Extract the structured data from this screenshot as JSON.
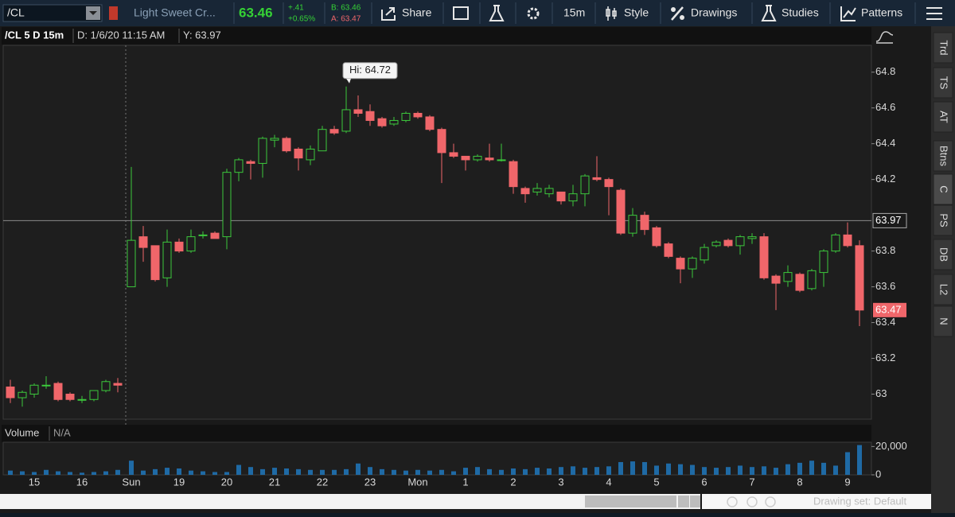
{
  "toolbar": {
    "symbol": "/CL",
    "description": "Light Sweet Cr...",
    "last": "63.46",
    "change": "+.41",
    "change_pct": "+0.65%",
    "bid": "B: 63.46",
    "ask": "A: 63.47",
    "buttons": [
      "Share",
      "15m",
      "Style",
      "Drawings",
      "Studies",
      "Patterns"
    ]
  },
  "header": {
    "title": "/CL 5 D 15m",
    "date": "D: 1/6/20 11:15 AM",
    "y": "Y: 63.97"
  },
  "chart_data": {
    "type": "candlestick",
    "categories": [
      null,
      null,
      "15",
      null,
      null,
      null,
      "16",
      null,
      null,
      null,
      "Sun",
      null,
      null,
      null,
      "19",
      null,
      null,
      null,
      "20",
      null,
      null,
      null,
      "21",
      null,
      null,
      null,
      "22",
      null,
      null,
      null,
      "23",
      null,
      null,
      null,
      "Mon",
      null,
      null,
      null,
      "1",
      null,
      null,
      null,
      "2",
      null,
      null,
      null,
      "3",
      null,
      null,
      null,
      "4",
      null,
      null,
      null,
      "5",
      null,
      null,
      null,
      "6",
      null,
      null,
      null,
      "7",
      null,
      null,
      null,
      "8",
      null,
      null,
      null,
      "9",
      null
    ],
    "open": [
      63.04,
      62.98,
      63.0,
      63.05,
      63.06,
      63.0,
      62.97,
      62.97,
      63.02,
      63.06,
      63.6,
      63.88,
      63.83,
      63.65,
      63.85,
      63.8,
      63.89,
      63.9,
      63.88,
      64.24,
      64.3,
      64.29,
      64.42,
      64.43,
      64.37,
      64.31,
      64.36,
      64.48,
      64.47,
      64.59,
      64.58,
      64.54,
      64.51,
      64.53,
      64.57,
      64.55,
      64.48,
      64.35,
      64.33,
      64.31,
      64.32,
      64.31,
      64.3,
      64.15,
      64.13,
      64.12,
      64.13,
      64.08,
      64.12,
      64.21,
      64.2,
      64.14,
      63.9,
      64.0,
      63.93,
      63.84,
      63.76,
      63.7,
      63.75,
      63.83,
      63.86,
      63.83,
      63.87,
      63.88,
      63.66,
      63.63,
      63.67,
      63.59,
      63.68,
      63.8,
      63.89,
      63.83
    ],
    "high": [
      63.08,
      63.02,
      63.06,
      63.1,
      63.07,
      63.01,
      62.99,
      63.02,
      63.08,
      63.09,
      64.27,
      63.94,
      63.83,
      63.92,
      63.87,
      63.92,
      63.91,
      63.91,
      64.26,
      64.32,
      64.31,
      64.44,
      64.45,
      64.44,
      64.38,
      64.39,
      64.5,
      64.5,
      64.72,
      64.67,
      64.62,
      64.55,
      64.55,
      64.58,
      64.58,
      64.56,
      64.49,
      64.4,
      64.33,
      64.34,
      64.4,
      64.4,
      64.31,
      64.16,
      64.18,
      64.17,
      64.13,
      64.17,
      64.23,
      64.33,
      64.21,
      64.15,
      64.04,
      64.02,
      63.94,
      63.85,
      63.77,
      63.77,
      63.84,
      63.86,
      63.87,
      63.89,
      63.9,
      63.9,
      63.67,
      63.72,
      63.68,
      63.7,
      63.81,
      63.9,
      63.96,
      63.86
    ],
    "low": [
      62.95,
      62.93,
      62.98,
      63.03,
      62.96,
      62.96,
      62.95,
      62.96,
      63.01,
      63.01,
      63.6,
      63.74,
      63.63,
      63.6,
      63.79,
      63.79,
      63.87,
      63.87,
      63.81,
      64.19,
      64.2,
      64.21,
      64.38,
      64.35,
      64.25,
      64.28,
      64.36,
      64.45,
      64.46,
      64.55,
      64.5,
      64.49,
      64.5,
      64.52,
      64.54,
      64.47,
      64.18,
      64.32,
      64.25,
      64.3,
      64.3,
      64.3,
      64.12,
      64.07,
      64.11,
      64.1,
      64.06,
      64.05,
      64.05,
      64.19,
      64.0,
      63.89,
      63.88,
      63.89,
      63.82,
      63.76,
      63.62,
      63.65,
      63.73,
      63.82,
      63.82,
      63.78,
      63.84,
      63.64,
      63.47,
      63.6,
      63.57,
      63.58,
      63.6,
      63.79,
      63.82,
      63.38
    ],
    "close": [
      62.98,
      63.01,
      63.05,
      63.05,
      62.97,
      62.97,
      62.97,
      63.02,
      63.07,
      63.05,
      63.86,
      63.82,
      63.64,
      63.85,
      63.8,
      63.88,
      63.89,
      63.87,
      64.24,
      64.31,
      64.29,
      64.43,
      64.43,
      64.36,
      64.32,
      64.37,
      64.48,
      64.46,
      64.59,
      64.57,
      64.53,
      64.5,
      64.53,
      64.57,
      64.55,
      64.48,
      64.35,
      64.33,
      64.31,
      64.33,
      64.31,
      64.31,
      64.16,
      64.12,
      64.15,
      64.15,
      64.08,
      64.12,
      64.22,
      64.2,
      64.16,
      63.9,
      64.0,
      63.92,
      63.83,
      63.77,
      63.7,
      63.76,
      63.82,
      63.85,
      63.83,
      63.88,
      63.88,
      63.65,
      63.62,
      63.68,
      63.58,
      63.69,
      63.8,
      63.89,
      63.83,
      63.47
    ],
    "up_color": "#3cc83c",
    "down_color": "#f0666a",
    "ylim": [
      62.86,
      64.95
    ],
    "yticks": [
      63,
      63.2,
      63.4,
      63.6,
      63.8,
      64.2,
      64.4,
      64.6,
      64.8
    ],
    "crosshair": 63.97,
    "last_price": 63.47,
    "annotation": "Hi: 64.72",
    "volume": {
      "title": "Volume",
      "status": "N/A",
      "color": "#1f6aa5",
      "values": [
        3000,
        2500,
        2000,
        3500,
        2500,
        2000,
        1500,
        2000,
        2500,
        3500,
        10000,
        3000,
        4000,
        5000,
        4500,
        3000,
        2500,
        2000,
        2000,
        7000,
        5500,
        4000,
        5000,
        4500,
        4000,
        3500,
        3500,
        3500,
        4000,
        8000,
        5500,
        4000,
        3500,
        3000,
        3500,
        3000,
        3500,
        2500,
        5000,
        5500,
        4000,
        3500,
        4500,
        4000,
        5000,
        4500,
        5500,
        6000,
        5000,
        5500,
        6000,
        9000,
        9500,
        9000,
        6500,
        8000,
        7500,
        7000,
        5500,
        5000,
        5500,
        6500,
        5500,
        6000,
        5000,
        7500,
        8500,
        10000,
        8500,
        6500,
        16000,
        21000
      ],
      "ylim": [
        0,
        23000
      ],
      "yticks": [
        {
          "value": 20000,
          "label": "20,000"
        },
        0
      ]
    }
  },
  "side_tabs": [
    "Trd",
    "TS",
    "AT",
    "Btns",
    "C",
    "PS",
    "DB",
    "L2",
    "N"
  ],
  "footer": {
    "drawing_set": "Drawing set: Default"
  }
}
